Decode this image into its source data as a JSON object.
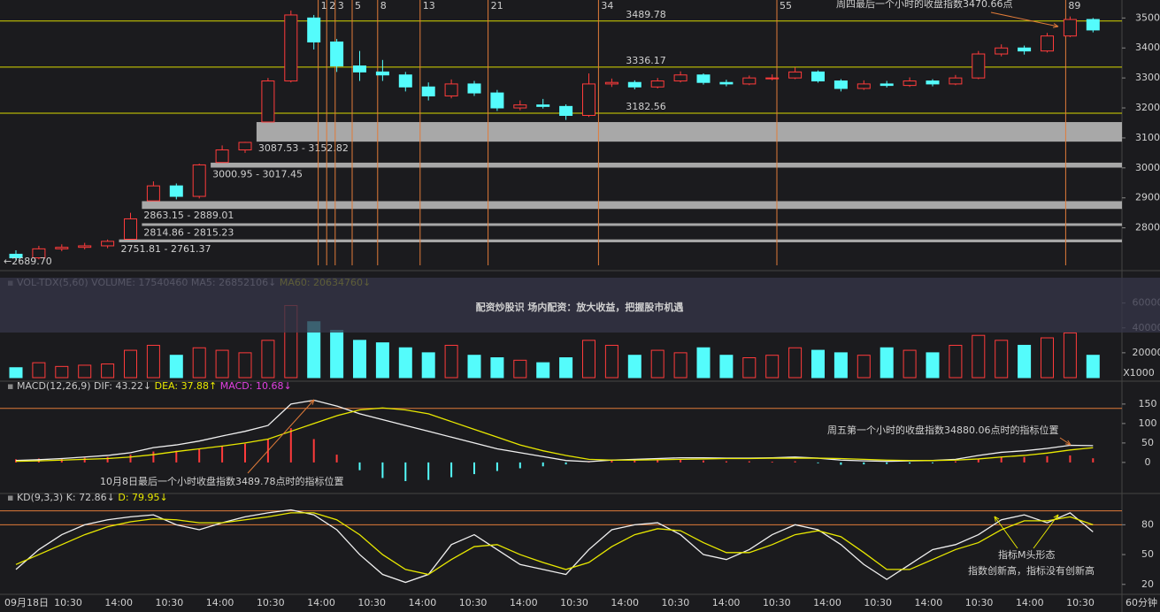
{
  "chart_data": [
    {
      "type": "candlestick",
      "open": [
        2712,
        2700,
        2730,
        2735,
        2740,
        2762,
        2890,
        2940,
        2905,
        3018,
        3060,
        3153,
        3290,
        3500,
        3420,
        3340,
        3320,
        3310,
        3270,
        3240,
        3280,
        3250,
        3200,
        3210,
        3205,
        3175,
        3280,
        3285,
        3270,
        3290,
        3310,
        3285,
        3280,
        3300,
        3300,
        3320,
        3290,
        3265,
        3280,
        3275,
        3290,
        3280,
        3300,
        3380,
        3400,
        3390,
        3440,
        3495
      ],
      "high": [
        2725,
        2740,
        2745,
        2750,
        2761,
        2850,
        2955,
        2948,
        3014,
        3075,
        3087,
        3300,
        3525,
        3510,
        3430,
        3390,
        3360,
        3320,
        3285,
        3295,
        3290,
        3260,
        3225,
        3230,
        3212,
        3315,
        3298,
        3292,
        3300,
        3322,
        3315,
        3294,
        3308,
        3312,
        3335,
        3325,
        3296,
        3292,
        3290,
        3302,
        3296,
        3310,
        3390,
        3412,
        3408,
        3450,
        3505,
        3500
      ],
      "low": [
        2689.7,
        2695,
        2722,
        2728,
        2732,
        2762,
        2890,
        2895,
        2898,
        3018,
        3050,
        3153,
        3285,
        3395,
        3320,
        3290,
        3290,
        3255,
        3225,
        3232,
        3240,
        3190,
        3192,
        3198,
        3160,
        3170,
        3270,
        3262,
        3265,
        3285,
        3278,
        3272,
        3276,
        3292,
        3296,
        3284,
        3255,
        3260,
        3268,
        3270,
        3272,
        3276,
        3296,
        3372,
        3378,
        3385,
        3436,
        3452
      ],
      "close": [
        2700,
        2730,
        2735,
        2740,
        2755,
        2830,
        2940,
        2905,
        3010,
        3060,
        3085,
        3290,
        3510,
        3420,
        3340,
        3320,
        3310,
        3270,
        3240,
        3280,
        3250,
        3200,
        3210,
        3205,
        3175,
        3280,
        3285,
        3270,
        3290,
        3310,
        3285,
        3280,
        3300,
        3300,
        3320,
        3290,
        3265,
        3280,
        3275,
        3290,
        3280,
        3300,
        3380,
        3400,
        3390,
        3440,
        3495,
        3460
      ],
      "up_color": "#ff3b3b",
      "down_color": "#54fcfc",
      "ylim": [
        2675,
        3560
      ],
      "yticks": [
        2800,
        2900,
        3000,
        3100,
        3200,
        3300,
        3400,
        3500
      ],
      "levels": [
        3489.78,
        3336.17,
        3182.56
      ],
      "level_color": "#d8d800",
      "gaps": [
        {
          "low": 3087.53,
          "high": 3152.82,
          "label": "3087.53 - 3152.82"
        },
        {
          "low": 3000.95,
          "high": 3017.45,
          "label": "3000.95 - 3017.45"
        },
        {
          "low": 2863.15,
          "high": 2889.01,
          "label": "2863.15 - 2889.01"
        },
        {
          "low": 2814.86,
          "high": 2815.23,
          "label": "2814.86 - 2815.23"
        },
        {
          "low": 2751.81,
          "high": 2761.37,
          "label": "2751.81 - 2761.37"
        }
      ],
      "fib_counts": [
        1,
        2,
        3,
        5,
        8,
        13,
        21,
        34,
        55,
        89
      ],
      "fib_color": "#e07b39",
      "annotations": [
        "周四最后一个小时的收盘指数3470.66点",
        "←2689.70"
      ]
    },
    {
      "type": "bar",
      "header": [
        {
          "text": "VOL-TDX(5,60)",
          "color": "#c8c8c8"
        },
        {
          "text": "VOLUME: 17540460",
          "color": "#c8c8c8"
        },
        {
          "text": "MA5: 26852106↓",
          "color": "#c8c8c8"
        },
        {
          "text": "MA60: 20634760↓",
          "color": "#e8e800"
        }
      ],
      "values": [
        8000,
        12000,
        9000,
        10000,
        11000,
        22000,
        26000,
        18000,
        24000,
        22000,
        20000,
        30000,
        58000,
        45000,
        38000,
        30000,
        28000,
        24000,
        20000,
        26000,
        18000,
        16000,
        14000,
        12000,
        16000,
        30000,
        26000,
        18000,
        22000,
        20000,
        24000,
        18000,
        16000,
        18000,
        24000,
        22000,
        20000,
        18000,
        24000,
        22000,
        20000,
        26000,
        34000,
        30000,
        26000,
        32000,
        36000,
        18000
      ],
      "ylim": [
        0,
        69000
      ],
      "yticks": [
        20000,
        40000,
        60000
      ],
      "unit": "X1000"
    },
    {
      "type": "macd",
      "header": [
        {
          "text": "MACD(12,26,9)",
          "color": "#c8c8c8"
        },
        {
          "text": "DIF: 43.22↓",
          "color": "#c8c8c8"
        },
        {
          "text": "DEA: 37.88↑",
          "color": "#e8e800"
        },
        {
          "text": "MACD: 10.68↓",
          "color": "#e040e0"
        }
      ],
      "hist": [
        8,
        10,
        10,
        12,
        14,
        20,
        28,
        30,
        36,
        42,
        48,
        60,
        88,
        60,
        20,
        -20,
        -40,
        -48,
        -45,
        -38,
        -30,
        -22,
        -15,
        -10,
        -5,
        3,
        6,
        5,
        6,
        7,
        5,
        3,
        3,
        2,
        3,
        -2,
        -6,
        -5,
        -4,
        -3,
        -2,
        3,
        10,
        14,
        14,
        16,
        18,
        10.68
      ],
      "dif": [
        5,
        7,
        10,
        14,
        18,
        25,
        38,
        45,
        55,
        68,
        80,
        95,
        150,
        160,
        145,
        125,
        110,
        95,
        80,
        65,
        50,
        35,
        25,
        15,
        5,
        2,
        6,
        8,
        10,
        12,
        12,
        11,
        11,
        12,
        14,
        11,
        6,
        4,
        3,
        4,
        5,
        8,
        18,
        26,
        30,
        36,
        44,
        43.22
      ],
      "dea": [
        3,
        4,
        6,
        8,
        10,
        14,
        20,
        28,
        35,
        42,
        50,
        60,
        80,
        100,
        120,
        135,
        140,
        135,
        125,
        105,
        85,
        65,
        45,
        30,
        18,
        8,
        6,
        6,
        7,
        8,
        9,
        10,
        10,
        11,
        11,
        11,
        10,
        8,
        6,
        5,
        5,
        6,
        9,
        14,
        18,
        24,
        32,
        37.88
      ],
      "dif_color": "#f0f0f0",
      "dea_color": "#e8e800",
      "ylim": [
        -73,
        177
      ],
      "yticks": [
        0,
        50,
        100,
        150
      ],
      "hlines": [
        139
      ],
      "annotations": [
        "10月8日最后一个小时收盘指数3489.78点时的指标位置",
        "周五第一个小时的收盘指数34880.06点时的指标位置"
      ]
    },
    {
      "type": "kd",
      "header": [
        {
          "text": "KD(9,3,3)",
          "color": "#c8c8c8"
        },
        {
          "text": "K: 72.86↓",
          "color": "#c8c8c8"
        },
        {
          "text": "D: 79.95↓",
          "color": "#e8e800"
        }
      ],
      "k": [
        35,
        55,
        70,
        80,
        85,
        88,
        90,
        80,
        75,
        82,
        88,
        92,
        95,
        90,
        75,
        50,
        30,
        22,
        30,
        60,
        70,
        55,
        40,
        35,
        30,
        55,
        75,
        80,
        82,
        70,
        50,
        45,
        55,
        70,
        80,
        75,
        60,
        40,
        25,
        40,
        55,
        60,
        70,
        85,
        90,
        82,
        92,
        72.86
      ],
      "d": [
        40,
        50,
        60,
        70,
        78,
        83,
        86,
        85,
        82,
        82,
        85,
        88,
        92,
        92,
        85,
        70,
        50,
        35,
        30,
        45,
        58,
        60,
        50,
        42,
        35,
        42,
        58,
        70,
        76,
        74,
        62,
        52,
        52,
        60,
        70,
        74,
        68,
        52,
        35,
        35,
        45,
        55,
        62,
        75,
        84,
        84,
        88,
        79.95
      ],
      "k_color": "#f0f0f0",
      "d_color": "#e8e800",
      "ylim": [
        10,
        99
      ],
      "yticks": [
        20,
        50,
        80
      ],
      "hlines": [
        94,
        80
      ],
      "annotations": [
        "指标M头形态",
        "指数创新高，指标没有创新高"
      ]
    }
  ],
  "time_axis": {
    "labels": [
      "09月18日",
      "10:30",
      "14:00",
      "10:30",
      "14:00",
      "10:30",
      "14:00",
      "10:30",
      "14:00",
      "10:30",
      "14:00",
      "10:30",
      "14:00",
      "10:30",
      "14:00",
      "10:30",
      "14:00",
      "10:30",
      "14:00",
      "10:30",
      "14:00",
      "10:30"
    ],
    "unit": "60分钟"
  },
  "banner": "配资炒股识 场内配资：放大收益，把握股市机遇"
}
